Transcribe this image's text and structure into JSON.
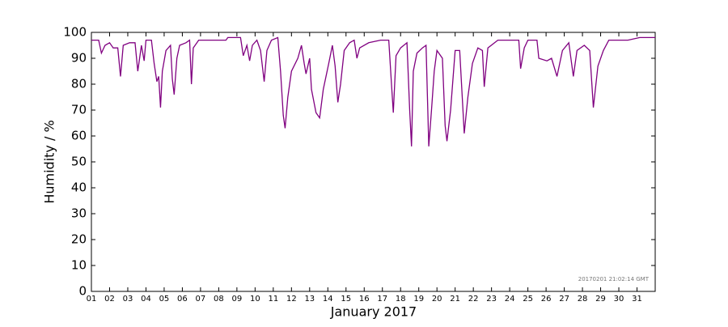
{
  "chart_data": {
    "type": "line",
    "xlabel": "January 2017",
    "ylabel": "Humidity / %",
    "annotation": "20170201 21:02:14 GMT",
    "color": "#800080",
    "grid": false,
    "xlim": [
      1,
      32
    ],
    "ylim": [
      0,
      100
    ],
    "yticks": [
      0,
      10,
      20,
      30,
      40,
      50,
      60,
      70,
      80,
      90,
      100
    ],
    "xticks": [
      {
        "value": 1,
        "label": "01"
      },
      {
        "value": 2,
        "label": "02"
      },
      {
        "value": 3,
        "label": "03"
      },
      {
        "value": 4,
        "label": "04"
      },
      {
        "value": 5,
        "label": "05"
      },
      {
        "value": 6,
        "label": "06"
      },
      {
        "value": 7,
        "label": "07"
      },
      {
        "value": 8,
        "label": "08"
      },
      {
        "value": 9,
        "label": "09"
      },
      {
        "value": 10,
        "label": "10"
      },
      {
        "value": 11,
        "label": "11"
      },
      {
        "value": 12,
        "label": "12"
      },
      {
        "value": 13,
        "label": "13"
      },
      {
        "value": 14,
        "label": "14"
      },
      {
        "value": 15,
        "label": "15"
      },
      {
        "value": 16,
        "label": "16"
      },
      {
        "value": 17,
        "label": "17"
      },
      {
        "value": 18,
        "label": "18"
      },
      {
        "value": 19,
        "label": "19"
      },
      {
        "value": 20,
        "label": "20"
      },
      {
        "value": 21,
        "label": "21"
      },
      {
        "value": 22,
        "label": "22"
      },
      {
        "value": 23,
        "label": "23"
      },
      {
        "value": 24,
        "label": "24"
      },
      {
        "value": 25,
        "label": "25"
      },
      {
        "value": 26,
        "label": "26"
      },
      {
        "value": 27,
        "label": "27"
      },
      {
        "value": 28,
        "label": "28"
      },
      {
        "value": 29,
        "label": "29"
      },
      {
        "value": 30,
        "label": "30"
      },
      {
        "value": 31,
        "label": "31"
      }
    ],
    "x": [
      1,
      1.4,
      1.55,
      1.75,
      2.0,
      2.2,
      2.45,
      2.6,
      2.75,
      3.1,
      3.4,
      3.55,
      3.75,
      3.9,
      4.0,
      4.3,
      4.45,
      4.6,
      4.7,
      4.8,
      4.9,
      5.1,
      5.35,
      5.45,
      5.55,
      5.7,
      5.85,
      6.2,
      6.4,
      6.5,
      6.6,
      6.9,
      8.4,
      8.5,
      9.2,
      9.35,
      9.55,
      9.7,
      9.85,
      10.1,
      10.3,
      10.5,
      10.65,
      10.9,
      11.25,
      11.4,
      11.55,
      11.65,
      11.8,
      12.0,
      12.35,
      12.55,
      12.7,
      12.8,
      13.0,
      13.1,
      13.35,
      13.55,
      13.75,
      14.05,
      14.25,
      14.4,
      14.55,
      14.7,
      14.9,
      15.2,
      15.45,
      15.6,
      15.75,
      16.25,
      16.9,
      17.35,
      17.5,
      17.6,
      17.75,
      18.0,
      18.35,
      18.5,
      18.6,
      18.7,
      18.9,
      19.2,
      19.4,
      19.55,
      19.7,
      19.85,
      20.0,
      20.3,
      20.45,
      20.55,
      20.75,
      21.0,
      21.25,
      21.5,
      21.7,
      21.95,
      22.25,
      22.5,
      22.6,
      22.8,
      23.35,
      24.5,
      24.6,
      24.8,
      25.0,
      25.5,
      25.6,
      26.05,
      26.3,
      26.6,
      26.9,
      27.25,
      27.5,
      27.7,
      28.1,
      28.4,
      28.6,
      28.85,
      29.15,
      29.45,
      30.5,
      31.15,
      32
    ],
    "values": [
      97,
      97,
      92,
      95,
      96,
      94,
      94,
      83,
      95,
      96,
      96,
      85,
      95,
      89,
      97,
      97,
      88,
      81,
      83,
      71,
      85,
      93,
      95,
      82,
      76,
      90,
      95,
      96,
      97,
      80,
      94,
      97,
      97,
      98,
      98,
      91,
      95,
      89,
      95,
      97,
      93,
      81,
      93,
      97,
      98,
      85,
      68,
      63,
      75,
      85,
      90,
      95,
      88,
      84,
      90,
      78,
      69,
      67,
      78,
      88,
      95,
      87,
      73,
      80,
      93,
      96,
      97,
      90,
      94,
      96,
      97,
      97,
      80,
      69,
      91,
      94,
      96,
      70,
      56,
      85,
      92,
      94,
      95,
      56,
      70,
      85,
      93,
      90,
      64,
      58,
      70,
      93,
      93,
      61,
      75,
      88,
      94,
      93,
      79,
      94,
      97,
      97,
      86,
      94,
      97,
      97,
      90,
      89,
      90,
      83,
      93,
      96,
      83,
      93,
      95,
      93,
      71,
      87,
      93,
      97,
      97,
      98,
      98
    ]
  }
}
